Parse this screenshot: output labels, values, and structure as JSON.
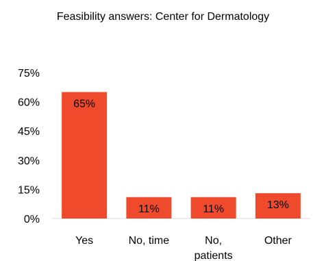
{
  "chart_data": {
    "type": "bar",
    "title": "Feasibility answers: Center for Dermatology",
    "categories": [
      "Yes",
      "No, time",
      "No, patients",
      "Other"
    ],
    "category_lines": [
      [
        "Yes"
      ],
      [
        "No, time"
      ],
      [
        "No,",
        "patients"
      ],
      [
        "Other"
      ]
    ],
    "values": [
      65,
      11,
      11,
      13
    ],
    "data_labels": [
      "65%",
      "11%",
      "11%",
      "13%"
    ],
    "ylim": [
      0,
      75
    ],
    "yticks": [
      0,
      15,
      30,
      45,
      60,
      75
    ],
    "ytick_labels": [
      "0%",
      "15%",
      "30%",
      "45%",
      "60%",
      "75%"
    ],
    "xlabel": "",
    "ylabel": "",
    "grid": false,
    "legend": "none",
    "colors": {
      "bar": "#F04A2C",
      "text": "#000000",
      "axis": "#D9D9D9"
    }
  }
}
